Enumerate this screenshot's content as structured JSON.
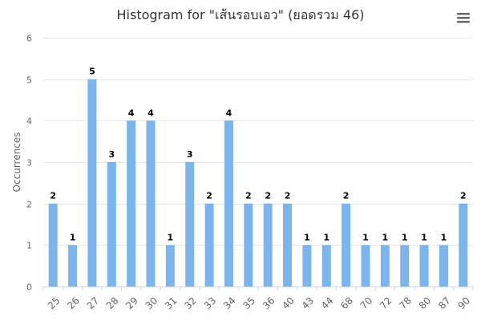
{
  "chart_data": {
    "type": "bar",
    "title": "Histogram for \"เส้นรอบเอว\" (ยอดรวม 46)",
    "xlabel": "",
    "ylabel": "Occurrences",
    "categories": [
      "25",
      "26",
      "27",
      "28",
      "29",
      "30",
      "31",
      "32",
      "33",
      "34",
      "35",
      "36",
      "40",
      "43",
      "44",
      "68",
      "70",
      "72",
      "78",
      "80",
      "87",
      "90"
    ],
    "values": [
      2,
      1,
      5,
      3,
      4,
      4,
      1,
      3,
      2,
      4,
      2,
      2,
      2,
      1,
      1,
      2,
      1,
      1,
      1,
      1,
      1,
      2
    ],
    "ylim": [
      0,
      6
    ],
    "yticks": [
      "0",
      "1",
      "2",
      "3",
      "4",
      "5",
      "6"
    ],
    "grid": true,
    "legend": "none",
    "bar_color": "#7cb5ec"
  },
  "menu": {
    "icon": "hamburger-menu-icon"
  }
}
